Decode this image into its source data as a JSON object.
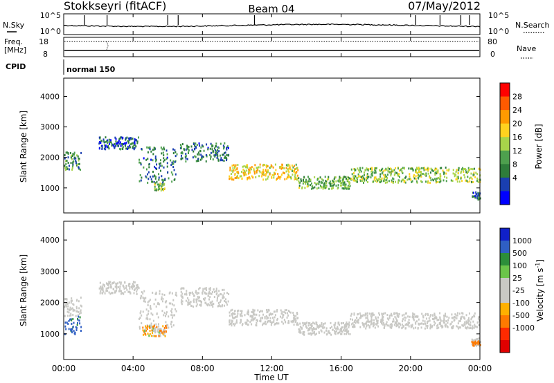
{
  "header": {
    "station": "Stokkseyri (fitACF)",
    "beam": "Beam 04",
    "date": "07/May/2012"
  },
  "noise_panel": {
    "left_label": "N.Sky",
    "left_ticks": [
      "10^5",
      "10^0"
    ],
    "right_ticks": [
      "10^5",
      "10^0"
    ],
    "right_label": "N.Search"
  },
  "freq_panel": {
    "left_label_line1": "Freq.",
    "left_label_line2": "[MHz]",
    "left_ticks": [
      "18",
      "8"
    ],
    "right_ticks": [
      "80",
      "0"
    ],
    "right_label": "Nave"
  },
  "cpid": {
    "label": "CPID",
    "mode": "normal 150"
  },
  "power_panel": {
    "ylabel": "Slant Range [km]",
    "yticks": [
      "4000",
      "3000",
      "2000",
      "1000"
    ],
    "colorbar_label": "Power [dB]",
    "colorbar_ticks": [
      "28",
      "24",
      "20",
      "16",
      "12",
      "8",
      "4"
    ]
  },
  "velocity_panel": {
    "ylabel": "Slant Range [km]",
    "yticks": [
      "4000",
      "3000",
      "2000",
      "1000"
    ],
    "colorbar_label": "Velocity [m s",
    "colorbar_label_sup": "-1",
    "colorbar_label_end": "]",
    "colorbar_ticks": [
      "1000",
      "500",
      "100",
      "25",
      "-25",
      "-100",
      "-500",
      "-1000"
    ]
  },
  "xaxis": {
    "ticks": [
      "00:00",
      "04:00",
      "08:00",
      "12:00",
      "16:00",
      "20:00",
      "00:00"
    ],
    "label": "Time UT"
  },
  "colors": {
    "power_scale": [
      "#0000ff",
      "#1a3fb0",
      "#2e7d3a",
      "#4ea04e",
      "#a8d44a",
      "#ffd21f",
      "#ff9a00",
      "#ff5a00",
      "#ff0000"
    ],
    "velocity_scale": [
      "#1020c8",
      "#2f5fc4",
      "#2c8e3a",
      "#6bc44a",
      "#c8c8c4",
      "#c8c8c4",
      "#ffb000",
      "#ff7a00",
      "#ff2a00",
      "#e00000"
    ],
    "ground_scatter": "#c8c8c4"
  },
  "chart_data": [
    {
      "type": "heatmap",
      "title": "Power",
      "xlabel": "Time UT",
      "ylabel": "Slant Range [km]",
      "xlim_hours": [
        0,
        24
      ],
      "ylim_km": [
        180,
        4600
      ],
      "zlabel": "Power [dB]",
      "zlim": [
        0,
        30
      ],
      "features": [
        {
          "t_start": 0.0,
          "t_end": 1.0,
          "range_start": 1600,
          "range_end": 2200,
          "typical_db": 10
        },
        {
          "t_start": 2.0,
          "t_end": 4.3,
          "range_start": 2300,
          "range_end": 2700,
          "typical_db": 6
        },
        {
          "t_start": 4.3,
          "t_end": 6.5,
          "range_start": 1200,
          "range_end": 2400,
          "typical_db": 8
        },
        {
          "t_start": 5.2,
          "t_end": 5.8,
          "range_start": 950,
          "range_end": 1200,
          "typical_db": 14
        },
        {
          "t_start": 6.7,
          "t_end": 9.5,
          "range_start": 1900,
          "range_end": 2500,
          "typical_db": 8
        },
        {
          "t_start": 9.5,
          "t_end": 13.5,
          "range_start": 1300,
          "range_end": 1800,
          "typical_db": 18
        },
        {
          "t_start": 13.5,
          "t_end": 16.5,
          "range_start": 1000,
          "range_end": 1400,
          "typical_db": 12
        },
        {
          "t_start": 16.5,
          "t_end": 24.0,
          "range_start": 1200,
          "range_end": 1700,
          "typical_db": 14
        },
        {
          "t_start": 23.5,
          "t_end": 24.0,
          "range_start": 650,
          "range_end": 900,
          "typical_db": 8
        }
      ]
    },
    {
      "type": "heatmap",
      "title": "Velocity",
      "xlabel": "Time UT",
      "ylabel": "Slant Range [km]",
      "xlim_hours": [
        0,
        24
      ],
      "ylim_km": [
        180,
        4600
      ],
      "zlabel": "Velocity [m s-1]",
      "zlim": [
        -1000,
        1000
      ],
      "features": [
        {
          "t_start": 0.0,
          "t_end": 1.0,
          "range_start": 1000,
          "range_end": 1600,
          "typical_ms": 600
        },
        {
          "t_start": 4.5,
          "t_end": 5.9,
          "range_start": 950,
          "range_end": 1300,
          "typical_ms": -80
        },
        {
          "t_start": 23.5,
          "t_end": 24.0,
          "range_start": 650,
          "range_end": 800,
          "typical_ms": -300
        }
      ]
    }
  ]
}
